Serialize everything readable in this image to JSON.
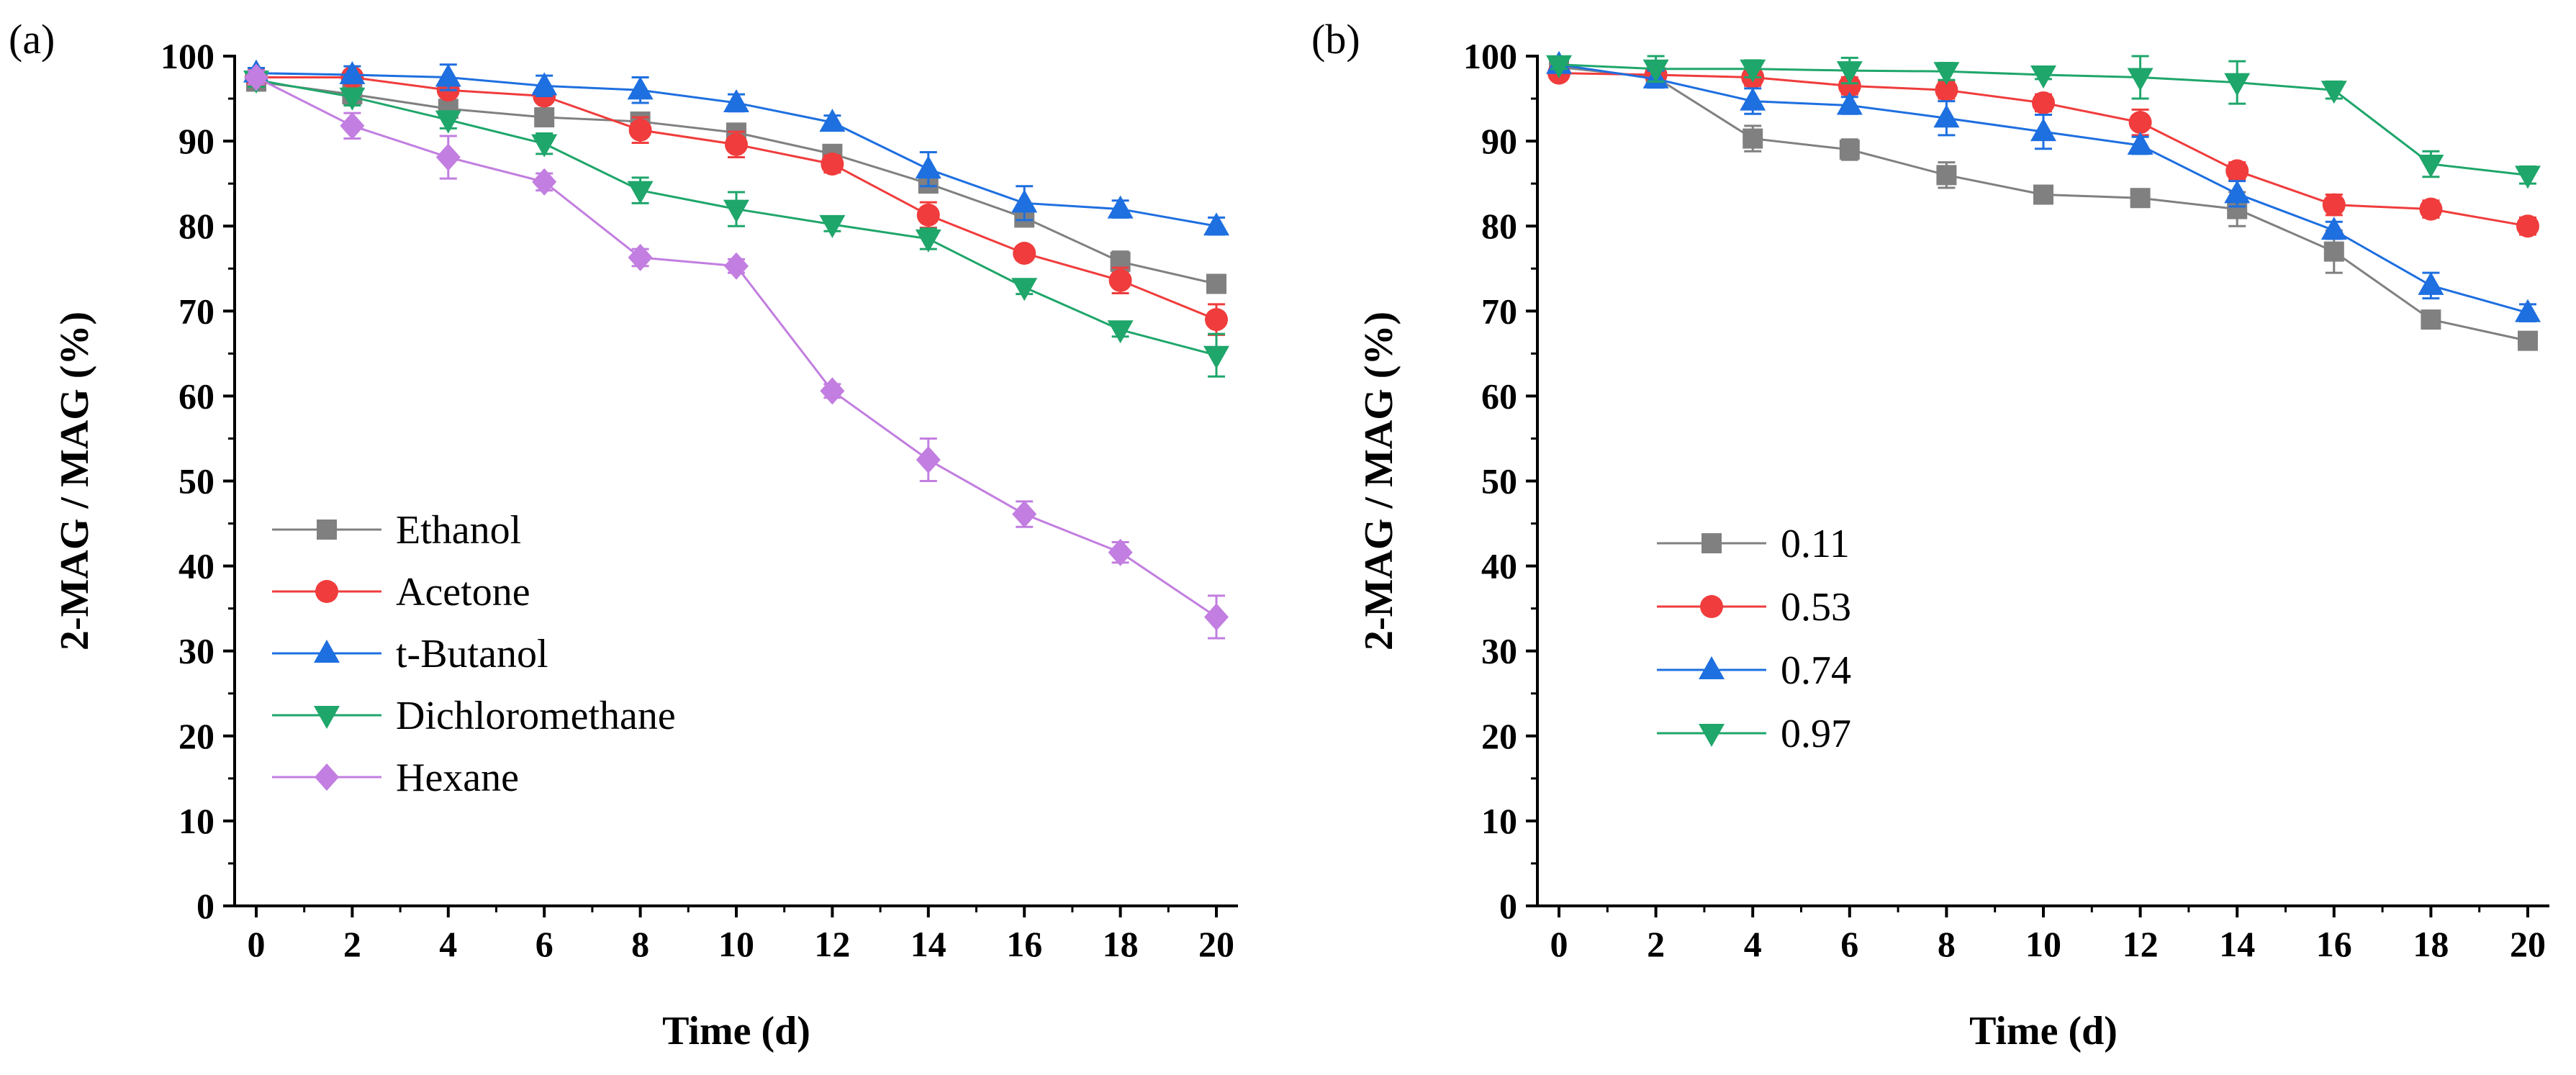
{
  "chart_data": [
    {
      "type": "line",
      "panel_label": "(a)",
      "xlabel": "Time (d)",
      "ylabel": "2-MAG / MAG (%)",
      "xlim": [
        0,
        20
      ],
      "ylim": [
        0,
        100
      ],
      "x_ticks": [
        "0",
        "2",
        "4",
        "6",
        "8",
        "10",
        "12",
        "14",
        "16",
        "18",
        "20"
      ],
      "y_ticks": [
        "0",
        "10",
        "20",
        "30",
        "40",
        "50",
        "60",
        "70",
        "80",
        "90",
        "100"
      ],
      "grid": false,
      "legend_position": "lower-left",
      "x": [
        0,
        2,
        4,
        6,
        8,
        10,
        12,
        14,
        16,
        18,
        20
      ],
      "series": [
        {
          "name": "Ethanol",
          "color": "#808080",
          "marker": "square",
          "values": [
            97.0,
            95.5,
            93.8,
            92.8,
            92.3,
            91.0,
            88.5,
            85.0,
            81.0,
            75.8,
            73.2
          ],
          "errors": [
            0.8,
            0.8,
            0.8,
            0.6,
            0.6,
            0.8,
            0.6,
            1.0,
            0.8,
            1.2,
            0.8
          ]
        },
        {
          "name": "Acetone",
          "color": "#f03c3c",
          "marker": "circle",
          "values": [
            97.5,
            97.5,
            96.0,
            95.3,
            91.3,
            89.6,
            87.3,
            81.3,
            76.8,
            73.6,
            69.0
          ],
          "errors": [
            0.8,
            0.8,
            0.8,
            0.8,
            1.5,
            1.5,
            1.0,
            1.5,
            0.8,
            1.5,
            1.8
          ]
        },
        {
          "name": "t-Butanol",
          "color": "#1e6fe0",
          "marker": "triangle-up",
          "values": [
            98.0,
            97.8,
            97.5,
            96.5,
            96.0,
            94.5,
            92.2,
            86.7,
            82.7,
            82.0,
            80.0
          ],
          "errors": [
            0.6,
            1.0,
            1.5,
            1.2,
            1.5,
            1.0,
            0.8,
            2.0,
            2.0,
            1.0,
            1.0
          ]
        },
        {
          "name": "Dichloromethane",
          "color": "#1fa66b",
          "marker": "triangle-down",
          "values": [
            97.2,
            95.2,
            92.5,
            89.7,
            84.2,
            82.0,
            80.2,
            78.5,
            72.8,
            67.8,
            64.8
          ],
          "errors": [
            0.8,
            1.0,
            1.0,
            1.2,
            1.5,
            2.0,
            0.8,
            1.2,
            0.8,
            0.8,
            2.5
          ]
        },
        {
          "name": "Hexane",
          "color": "#c27ee0",
          "marker": "diamond",
          "values": [
            97.5,
            91.8,
            88.1,
            85.2,
            76.3,
            75.3,
            60.6,
            52.5,
            46.1,
            41.6,
            34.0
          ],
          "errors": [
            0.8,
            1.5,
            2.5,
            1.0,
            1.0,
            0.8,
            0.8,
            2.5,
            1.5,
            1.2,
            2.5
          ]
        }
      ]
    },
    {
      "type": "line",
      "panel_label": "(b)",
      "xlabel": "Time (d)",
      "ylabel": "2-MAG / MAG (%)",
      "xlim": [
        0,
        20
      ],
      "ylim": [
        0,
        100
      ],
      "x_ticks": [
        "0",
        "2",
        "4",
        "6",
        "8",
        "10",
        "12",
        "14",
        "16",
        "18",
        "20"
      ],
      "y_ticks": [
        "0",
        "10",
        "20",
        "30",
        "40",
        "50",
        "60",
        "70",
        "80",
        "90",
        "100"
      ],
      "grid": false,
      "legend_position": "lower-left",
      "x": [
        0,
        2,
        4,
        6,
        8,
        10,
        12,
        14,
        16,
        18,
        20
      ],
      "series": [
        {
          "name": "0.11",
          "color": "#808080",
          "marker": "square",
          "values": [
            98.7,
            97.5,
            90.3,
            89.0,
            86.0,
            83.7,
            83.3,
            82.0,
            77.0,
            69.0,
            66.5
          ],
          "errors": [
            0.5,
            0.8,
            1.5,
            1.2,
            1.5,
            0.8,
            0.6,
            2.0,
            2.5,
            0.8,
            0.8
          ]
        },
        {
          "name": "0.53",
          "color": "#f03c3c",
          "marker": "circle",
          "values": [
            98.0,
            97.8,
            97.5,
            96.5,
            96.0,
            94.5,
            92.2,
            86.5,
            82.5,
            82.0,
            80.0
          ],
          "errors": [
            0.5,
            0.8,
            1.0,
            1.0,
            1.0,
            1.0,
            1.5,
            1.0,
            1.2,
            1.0,
            1.0
          ]
        },
        {
          "name": "0.74",
          "color": "#1e6fe0",
          "marker": "triangle-up",
          "values": [
            99.0,
            97.3,
            94.7,
            94.2,
            92.7,
            91.1,
            89.5,
            83.8,
            79.5,
            73.0,
            69.8
          ],
          "errors": [
            0.5,
            1.0,
            1.5,
            1.0,
            2.0,
            2.0,
            1.0,
            1.5,
            1.0,
            1.5,
            1.0
          ]
        },
        {
          "name": "0.97",
          "color": "#1fa66b",
          "marker": "triangle-down",
          "values": [
            99.0,
            98.5,
            98.5,
            98.3,
            98.2,
            97.8,
            97.5,
            96.9,
            96.0,
            87.3,
            86.0
          ],
          "errors": [
            0.5,
            1.5,
            1.0,
            1.5,
            1.0,
            0.5,
            2.5,
            2.5,
            1.0,
            1.5,
            1.0
          ]
        }
      ]
    }
  ]
}
